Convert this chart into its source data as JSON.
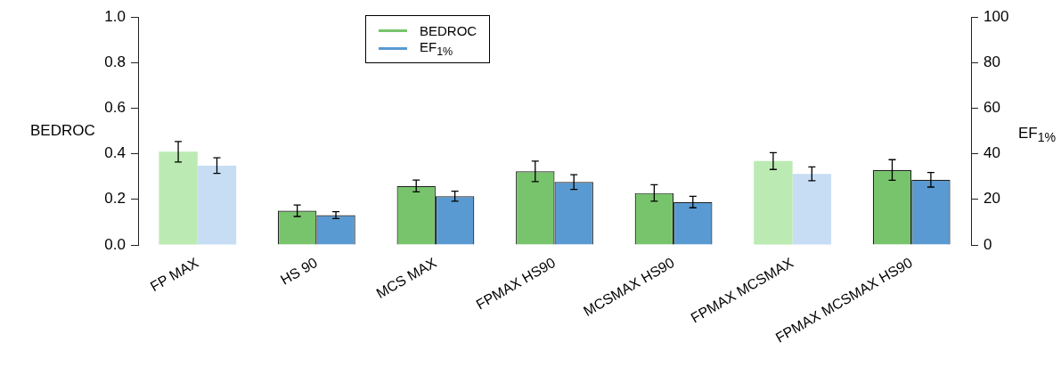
{
  "chart_data": {
    "type": "bar",
    "categories": [
      "FP MAX",
      "HS 90",
      "MCS MAX",
      "FPMAX HS90",
      "MCSMAX HS90",
      "FPMAX MCSMAX",
      "FPMAX MCSMAX HS90"
    ],
    "ylabel": "BEDROC",
    "y2label": "EF$_{1%}$",
    "series": [
      {
        "name": "BEDROC",
        "color": "#78c46c",
        "colors": [
          "#bbebb2",
          "#78c46c",
          "#78c46c",
          "#78c46c",
          "#78c46c",
          "#bbebb2",
          "#78c46c"
        ],
        "values": [
          0.409,
          0.15,
          0.259,
          0.323,
          0.228,
          0.368,
          0.329
        ],
        "errors": [
          0.045,
          0.025,
          0.026,
          0.045,
          0.036,
          0.037,
          0.045
        ]
      },
      {
        "name": "EF$_{1%}$",
        "axis": "y2",
        "color": "#5a9ad2",
        "colors": [
          "#c7ddf4",
          "#5a9ad2",
          "#5a9ad2",
          "#5a9ad2",
          "#5a9ad2",
          "#c7ddf4",
          "#5a9ad2"
        ],
        "values": [
          34.8,
          13.1,
          21.4,
          27.6,
          18.8,
          31.2,
          28.6
        ],
        "errors": [
          3.4,
          1.5,
          2.2,
          3.2,
          2.5,
          3.0,
          3.2
        ]
      }
    ],
    "ylim": [
      0,
      1
    ],
    "yticks": [
      {
        "value": 0,
        "label": "0.0"
      },
      {
        "value": 0.2,
        "label": "0.2"
      },
      {
        "value": 0.4,
        "label": "0.4"
      },
      {
        "value": 0.6,
        "label": "0.6"
      },
      {
        "value": 0.8,
        "label": "0.8"
      },
      {
        "value": 1,
        "label": "1.0"
      }
    ],
    "y2lim": [
      0,
      100
    ],
    "y2ticks": [
      0,
      20,
      40,
      60,
      80,
      100
    ],
    "grid": false,
    "legend": "top left"
  }
}
